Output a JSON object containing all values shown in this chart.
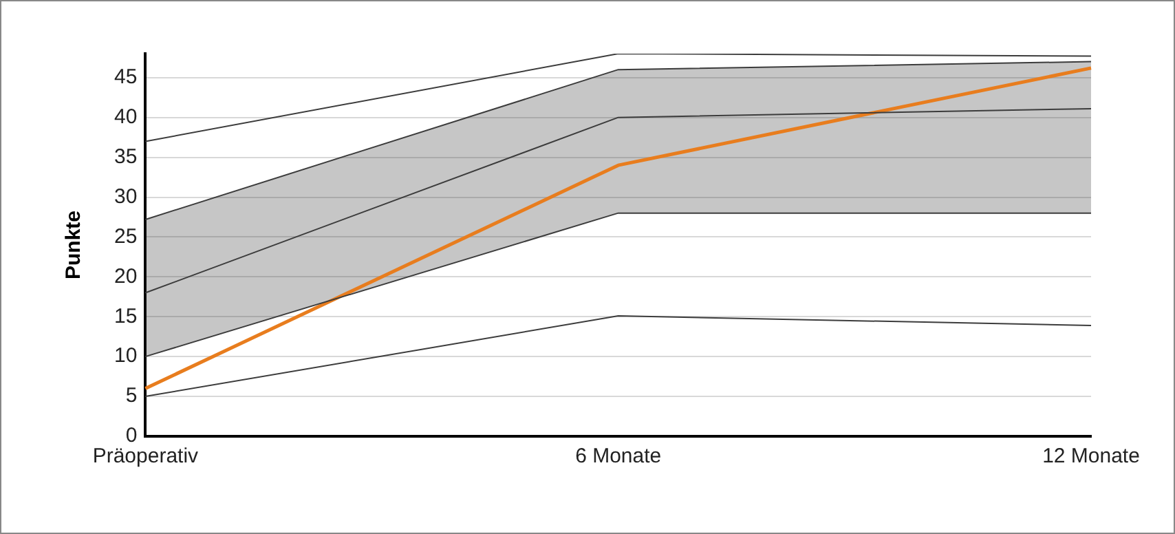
{
  "chart_data": {
    "type": "line",
    "ylabel": "Punkte",
    "categories": [
      "Präoperativ",
      "6 Monate",
      "12 Monate"
    ],
    "series": [
      {
        "color": "#3c3c3c",
        "values": [
          37,
          48,
          47.7
        ]
      },
      {
        "color": "#3c3c3c",
        "values": [
          27.2,
          46,
          47
        ]
      },
      {
        "color": "#3c3c3c",
        "values": [
          18,
          40,
          41.1
        ],
        "lower": [
          10,
          28,
          28
        ],
        "upper": [
          27.2,
          46,
          47
        ]
      },
      {
        "color": "#3c3c3c",
        "values": [
          10,
          28,
          28
        ]
      },
      {
        "color": "#3c3c3c",
        "values": [
          5,
          15.1,
          13.9
        ]
      },
      {
        "color": "#e87d1e",
        "values": [
          6,
          34,
          46.2
        ]
      }
    ],
    "ylim": [
      0,
      48
    ],
    "yticks": [
      0,
      5,
      10,
      15,
      20,
      25,
      30,
      35,
      40,
      45
    ],
    "grid": "y",
    "legend": false,
    "marker": "none",
    "line_style": "solid"
  }
}
